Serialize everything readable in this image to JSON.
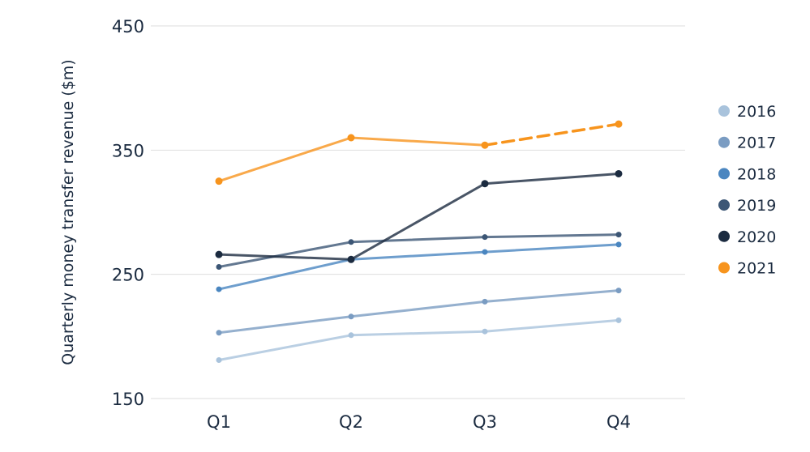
{
  "chart_data": {
    "type": "line",
    "title": "",
    "xlabel": "",
    "ylabel": "Quarterly money transfer revenue ($m)",
    "categories": [
      "Q1",
      "Q2",
      "Q3",
      "Q4"
    ],
    "ylim": [
      150,
      450
    ],
    "yticks": [
      150,
      250,
      350,
      450
    ],
    "grid": true,
    "legend_position": "right",
    "series": [
      {
        "name": "2016",
        "color": "#a9c3dc",
        "values": [
          181,
          201,
          204,
          213
        ]
      },
      {
        "name": "2017",
        "color": "#7a9cc2",
        "values": [
          203,
          216,
          228,
          237
        ]
      },
      {
        "name": "2018",
        "color": "#4a86c0",
        "values": [
          238,
          262,
          268,
          274
        ]
      },
      {
        "name": "2019",
        "color": "#3c5675",
        "values": [
          256,
          276,
          280,
          282
        ]
      },
      {
        "name": "2020",
        "color": "#1b2b40",
        "values": [
          266,
          262,
          323,
          331
        ]
      },
      {
        "name": "2021",
        "color": "#f7941d",
        "values": [
          325,
          360,
          354,
          371
        ],
        "dashed_from_index": 2
      }
    ]
  }
}
